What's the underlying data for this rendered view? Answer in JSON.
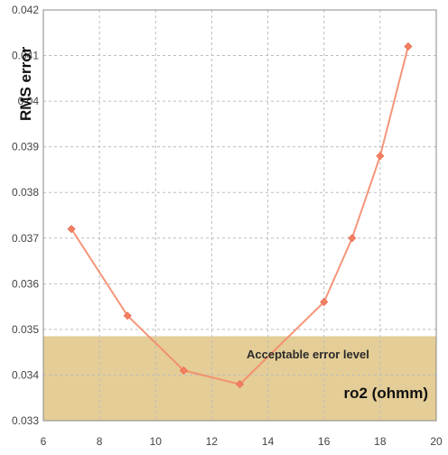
{
  "chart_data": {
    "type": "line",
    "title": "",
    "xlabel": "ro2 (ohmm)",
    "ylabel": "RMS error",
    "xlim": [
      6,
      20
    ],
    "ylim": [
      0.033,
      0.042
    ],
    "x_ticks": [
      "6",
      "8",
      "10",
      "12",
      "14",
      "16",
      "18",
      "20"
    ],
    "y_ticks": [
      "0.033",
      "0.034",
      "0.035",
      "0.036",
      "0.037",
      "0.038",
      "0.039",
      "0.04",
      "0.041",
      "0.042"
    ],
    "grid": true,
    "series": [
      {
        "x": [
          7,
          9,
          11,
          13,
          16,
          17,
          18,
          19
        ],
        "y": [
          0.0372,
          0.0353,
          0.0341,
          0.0338,
          0.0356,
          0.037,
          0.0388,
          0.0412
        ]
      }
    ],
    "annotations": [
      {
        "text": "Acceptable error level",
        "band_y_range": [
          0.033,
          0.03485
        ]
      }
    ],
    "colors": {
      "line": "#f4896a",
      "marker": "#f38064",
      "band": "#e4cd96",
      "grid": "#bdbdbd",
      "axis": "#8a8a8a"
    }
  }
}
